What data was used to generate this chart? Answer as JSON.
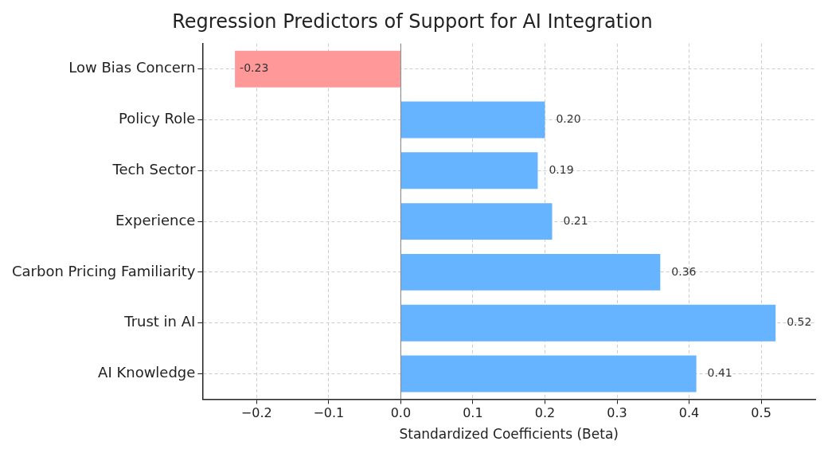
{
  "chart_data": {
    "type": "bar",
    "orientation": "horizontal",
    "title": "Regression Predictors of Support for AI Integration",
    "xlabel": "Standardized Coefficients (Beta)",
    "categories": [
      "Low Bias Concern",
      "Policy Role",
      "Tech Sector",
      "Experience",
      "Carbon Pricing Familiarity",
      "Trust in AI",
      "AI Knowledge"
    ],
    "values": [
      -0.23,
      0.2,
      0.19,
      0.21,
      0.36,
      0.52,
      0.41
    ],
    "colors": [
      "#ff9999",
      "#66b3ff",
      "#66b3ff",
      "#66b3ff",
      "#66b3ff",
      "#66b3ff",
      "#66b3ff"
    ],
    "value_labels": [
      "-0.23",
      "0.20",
      "0.19",
      "0.21",
      "0.36",
      "0.52",
      "0.41"
    ],
    "xlim": [
      -0.275,
      0.575
    ],
    "xticks": [
      {
        "value": -0.2,
        "label": "−0.2"
      },
      {
        "value": -0.1,
        "label": "−0.1"
      },
      {
        "value": 0,
        "label": "0.0"
      },
      {
        "value": 0.1,
        "label": "0.1"
      },
      {
        "value": 0.2,
        "label": "0.2"
      },
      {
        "value": 0.3,
        "label": "0.3"
      },
      {
        "value": 0.4,
        "label": "0.4"
      },
      {
        "value": 0.5,
        "label": "0.5"
      }
    ],
    "ref_lines": [
      {
        "axis": "x",
        "value": 0,
        "color": "#808080"
      }
    ],
    "grid": true,
    "legend": false
  }
}
